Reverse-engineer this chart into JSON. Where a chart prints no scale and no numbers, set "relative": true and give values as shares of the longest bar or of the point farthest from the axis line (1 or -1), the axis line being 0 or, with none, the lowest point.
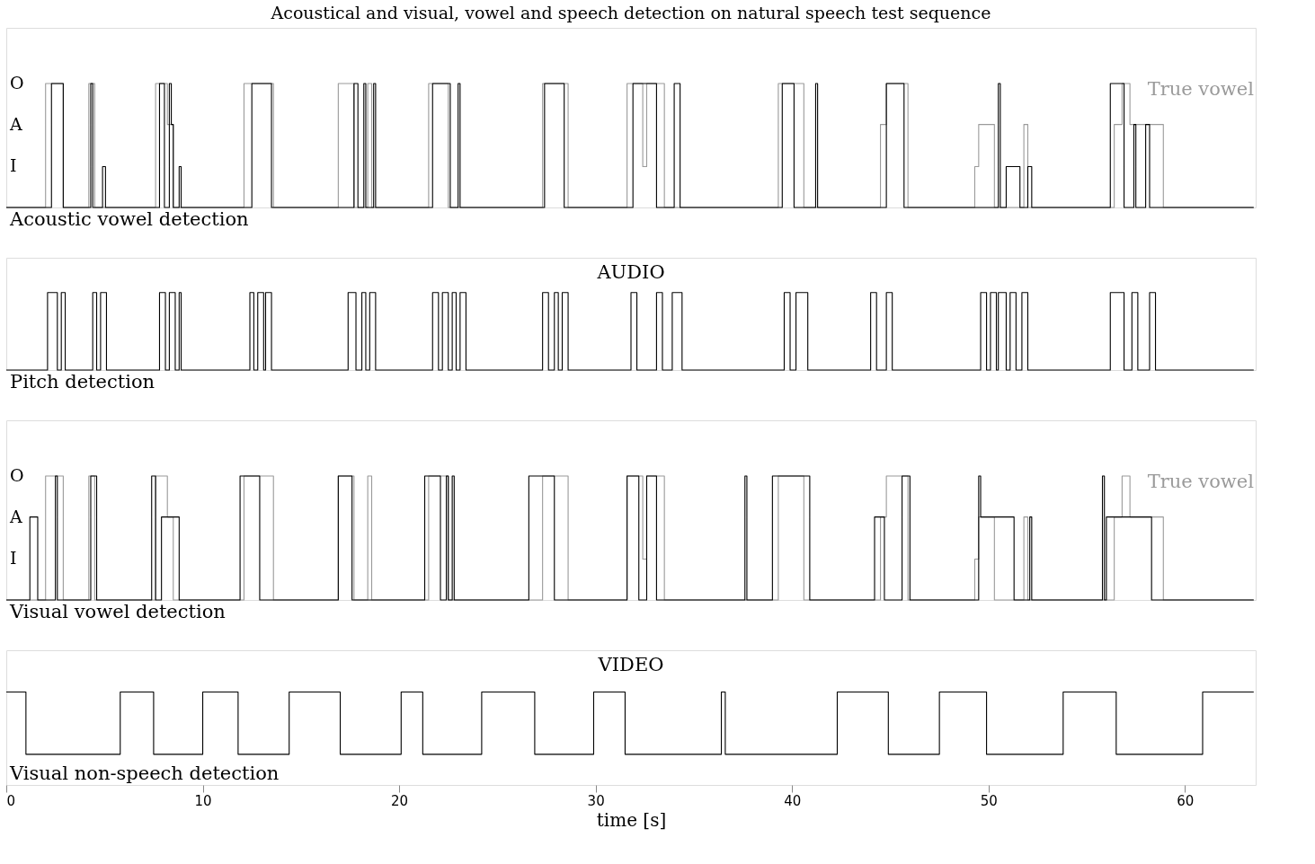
{
  "chart_data": [
    {
      "type": "step",
      "title": "Acoustical and visual, vowel and speech detection on natural speech test sequence",
      "relative": true,
      "xlim": [
        0,
        63.6
      ],
      "tick_labels": false,
      "grid": false,
      "annotations": [
        "O",
        "A",
        "I"
      ],
      "series": [
        {
          "name": "True vowel",
          "color": "#9a9a9a",
          "x": [
            0,
            2.0,
            2.9,
            4.2,
            4.5,
            7.6,
            8.2,
            8.5,
            12.1,
            13.6,
            16.9,
            17.7,
            18.4,
            18.6,
            21.5,
            22.5,
            27.3,
            28.6,
            31.6,
            32.4,
            32.6,
            33.5,
            39.3,
            40.6,
            44.5,
            44.8,
            45.9,
            49.3,
            49.5,
            50.3,
            51.8,
            52.0,
            56.4,
            56.8,
            57.2,
            58.9,
            63.5
          ],
          "values": [
            0,
            1,
            0,
            1,
            0,
            1,
            0.67,
            0,
            1,
            0,
            1,
            0,
            1,
            0,
            1,
            0,
            1,
            0,
            1,
            0.33,
            1,
            0,
            1,
            0,
            0.67,
            1,
            0,
            0.33,
            0.67,
            0,
            0.67,
            0,
            0.67,
            1,
            0.67,
            0,
            0
          ]
        },
        {
          "name": "Acoustic vowel detection",
          "color": "#000000",
          "x": [
            0,
            2.3,
            2.9,
            4.3,
            4.4,
            4.9,
            5.05,
            7.8,
            8.05,
            8.3,
            8.4,
            8.5,
            8.8,
            8.9,
            12.5,
            13.5,
            17.7,
            17.9,
            18.2,
            18.3,
            18.7,
            18.8,
            21.7,
            22.6,
            23.0,
            23.1,
            27.4,
            28.4,
            31.9,
            33.1,
            34.0,
            34.3,
            39.5,
            40.1,
            41.2,
            41.3,
            44.8,
            45.7,
            50.5,
            50.6,
            50.9,
            51.6,
            52.0,
            52.2,
            56.2,
            56.9,
            57.4,
            57.5,
            58.0,
            58.2,
            63.5
          ],
          "values": [
            0,
            1,
            0,
            1,
            0,
            0.33,
            0,
            1,
            0,
            1,
            0.67,
            0,
            0.33,
            0,
            1,
            0,
            1,
            0,
            1,
            0,
            1,
            0,
            1,
            0,
            1,
            0,
            1,
            0,
            1,
            0,
            1,
            0,
            1,
            0,
            1,
            0,
            1,
            0,
            1,
            0,
            0.33,
            0,
            0.33,
            0,
            1,
            0,
            0.67,
            0,
            0.67,
            0,
            0
          ]
        }
      ]
    },
    {
      "type": "step",
      "relative": true,
      "xlim": [
        0,
        63.6
      ],
      "tick_labels": false,
      "grid": false,
      "annotations": [
        "AUDIO"
      ],
      "series": [
        {
          "name": "Pitch detection",
          "color": "#000000",
          "x": [
            0,
            2.1,
            2.6,
            2.8,
            3.0,
            4.4,
            4.6,
            4.8,
            5.1,
            7.8,
            8.1,
            8.3,
            8.6,
            8.8,
            8.9,
            12.4,
            12.6,
            12.8,
            13.1,
            13.2,
            13.5,
            17.4,
            17.8,
            18.1,
            18.3,
            18.5,
            18.8,
            21.7,
            22.0,
            22.2,
            22.5,
            22.7,
            22.9,
            23.1,
            23.4,
            27.3,
            27.6,
            27.9,
            28.1,
            28.3,
            28.6,
            31.8,
            32.1,
            33.1,
            33.4,
            33.9,
            34.4,
            39.6,
            39.9,
            40.2,
            40.8,
            44.0,
            44.3,
            44.8,
            45.1,
            49.6,
            49.9,
            50.1,
            50.4,
            50.5,
            50.9,
            51.1,
            51.4,
            51.7,
            52.0,
            56.2,
            56.9,
            57.3,
            57.6,
            58.2,
            58.5,
            63.5
          ],
          "values": [
            0,
            1,
            0,
            1,
            0,
            1,
            0,
            1,
            0,
            1,
            0,
            1,
            0,
            1,
            0,
            1,
            0,
            1,
            0,
            1,
            0,
            1,
            0,
            1,
            0,
            1,
            0,
            1,
            0,
            1,
            0,
            1,
            0,
            1,
            0,
            1,
            0,
            1,
            0,
            1,
            0,
            1,
            0,
            1,
            0,
            1,
            0,
            1,
            0,
            1,
            0,
            1,
            0,
            1,
            0,
            1,
            0,
            1,
            0,
            1,
            0,
            1,
            0,
            1,
            0,
            1,
            0,
            1,
            0,
            1,
            0,
            0
          ]
        }
      ]
    },
    {
      "type": "step",
      "relative": true,
      "xlim": [
        0,
        63.6
      ],
      "tick_labels": false,
      "grid": false,
      "annotations": [
        "O",
        "A",
        "I"
      ],
      "series": [
        {
          "name": "True vowel",
          "color": "#9a9a9a",
          "x": [
            0,
            2.0,
            2.9,
            4.2,
            4.5,
            7.6,
            8.2,
            8.5,
            12.1,
            13.6,
            16.9,
            17.7,
            18.4,
            18.6,
            21.5,
            22.5,
            27.3,
            28.6,
            31.6,
            32.4,
            32.6,
            33.5,
            39.3,
            40.6,
            44.5,
            44.8,
            45.9,
            49.3,
            49.5,
            50.3,
            51.8,
            52.0,
            56.4,
            56.8,
            57.2,
            58.9,
            63.5
          ],
          "values": [
            0,
            1,
            0,
            1,
            0,
            1,
            0.67,
            0,
            1,
            0,
            1,
            0,
            1,
            0,
            1,
            0,
            1,
            0,
            1,
            0.33,
            1,
            0,
            1,
            0,
            0.67,
            1,
            0,
            0.33,
            0.67,
            0,
            0.67,
            0,
            0.67,
            1,
            0.67,
            0,
            0
          ]
        },
        {
          "name": "Visual vowel detection",
          "color": "#000000",
          "x": [
            0,
            1.2,
            1.6,
            2.5,
            2.6,
            4.3,
            4.6,
            7.4,
            7.6,
            7.9,
            8.8,
            11.9,
            12.9,
            16.9,
            17.6,
            21.3,
            22.1,
            22.4,
            22.5,
            22.7,
            22.8,
            26.6,
            27.9,
            31.6,
            32.2,
            32.6,
            33.1,
            37.6,
            37.7,
            39.0,
            40.9,
            44.2,
            44.7,
            45.6,
            46.0,
            49.5,
            49.6,
            51.3,
            52.1,
            52.2,
            55.8,
            55.9,
            56.0,
            58.3,
            63.5
          ],
          "values": [
            0,
            0.67,
            0,
            1,
            0,
            1,
            0,
            1,
            0,
            0.67,
            0,
            1,
            0,
            1,
            0,
            1,
            0,
            1,
            0,
            1,
            0,
            1,
            0,
            1,
            0,
            1,
            0,
            1,
            0,
            1,
            0,
            0.67,
            0,
            1,
            0,
            1,
            0.67,
            0,
            0.67,
            0,
            1,
            0,
            0.67,
            0,
            0
          ]
        }
      ]
    },
    {
      "type": "step",
      "relative": true,
      "xlim": [
        0,
        63.6
      ],
      "xticks": [
        0,
        10,
        20,
        30,
        40,
        50,
        60
      ],
      "xlabel": "time [s]",
      "tick_labels": "x",
      "grid": false,
      "annotations": [
        "VIDEO"
      ],
      "series": [
        {
          "name": "Visual non-speech detection",
          "color": "#000000",
          "x": [
            0,
            1.0,
            5.8,
            7.5,
            10.0,
            11.8,
            14.4,
            17.0,
            20.1,
            21.2,
            24.2,
            26.9,
            29.9,
            31.5,
            36.4,
            36.6,
            42.3,
            44.9,
            47.5,
            49.9,
            53.8,
            56.5,
            60.9,
            63.5
          ],
          "values": [
            1,
            0.33,
            1,
            0.33,
            1,
            0.33,
            1,
            0.33,
            1,
            0.33,
            1,
            0.33,
            1,
            0.33,
            1,
            0.33,
            1,
            0.33,
            1,
            0.33,
            1,
            0.33,
            1,
            1
          ]
        }
      ]
    }
  ]
}
